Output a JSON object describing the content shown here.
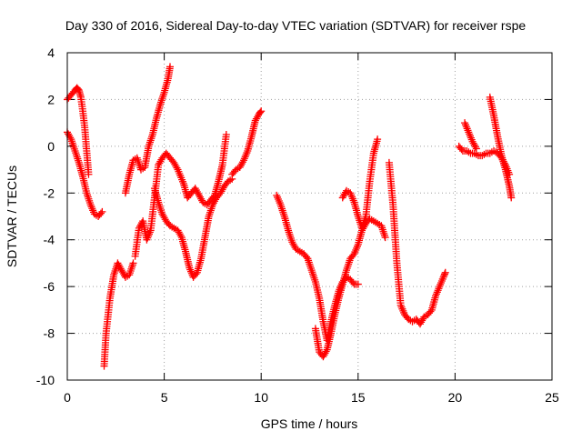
{
  "chart_data": {
    "type": "scatter",
    "title": "Day 330 of 2016, Sidereal Day-to-day VTEC variation (SDTVAR) for receiver rspe",
    "xlabel": "GPS time / hours",
    "ylabel": "SDTVAR / TECUs",
    "xlim": [
      0,
      25
    ],
    "ylim": [
      -10,
      4
    ],
    "x_ticks": [
      0,
      5,
      10,
      15,
      20,
      25
    ],
    "y_ticks": [
      -10,
      -8,
      -6,
      -4,
      -2,
      0,
      2,
      4
    ],
    "grid": true,
    "legend": "none",
    "marker": "+",
    "color": "#ff0000",
    "series": [
      {
        "x": [
          0.0,
          0.2,
          0.4,
          0.5,
          0.6,
          0.7,
          0.8,
          0.9,
          1.0,
          1.1
        ],
        "y": [
          2.0,
          2.2,
          2.4,
          2.5,
          2.4,
          2.1,
          1.5,
          0.8,
          -0.2,
          -1.2
        ]
      },
      {
        "x": [
          0.0,
          0.2,
          0.4,
          0.6,
          0.8,
          1.0,
          1.2,
          1.4,
          1.6,
          1.8
        ],
        "y": [
          0.6,
          0.3,
          -0.2,
          -0.7,
          -1.3,
          -2.0,
          -2.5,
          -2.9,
          -3.0,
          -2.8
        ]
      },
      {
        "x": [
          1.9,
          2.0,
          2.2,
          2.4,
          2.6,
          2.8,
          3.0,
          3.2,
          3.4
        ],
        "y": [
          -9.4,
          -8.0,
          -6.5,
          -5.5,
          -5.0,
          -5.3,
          -5.6,
          -5.5,
          -5.0
        ]
      },
      {
        "x": [
          3.0,
          3.2,
          3.4,
          3.6,
          3.8,
          4.0,
          4.2,
          4.4,
          4.6,
          4.8,
          5.0,
          5.2,
          5.3
        ],
        "y": [
          -2.0,
          -1.2,
          -0.6,
          -0.5,
          -1.0,
          -0.9,
          0.0,
          0.5,
          1.2,
          1.8,
          2.3,
          2.9,
          3.4
        ]
      },
      {
        "x": [
          3.5,
          3.7,
          3.9,
          4.1,
          4.3,
          4.5,
          4.7,
          4.9,
          5.1,
          5.3,
          5.5,
          5.7,
          6.0,
          6.2,
          6.4,
          6.6,
          6.8,
          7.0,
          7.2,
          7.4,
          7.6,
          7.8,
          8.0,
          8.2
        ],
        "y": [
          -4.7,
          -3.5,
          -3.2,
          -4.0,
          -3.6,
          -2.2,
          -0.8,
          -0.5,
          -0.3,
          -0.5,
          -0.7,
          -1.0,
          -1.6,
          -2.2,
          -2.0,
          -1.8,
          -2.1,
          -2.4,
          -2.5,
          -2.3,
          -2.1,
          -1.5,
          -0.8,
          0.5
        ]
      },
      {
        "x": [
          4.5,
          4.7,
          4.9,
          5.1,
          5.3,
          5.5,
          5.7,
          5.9,
          6.1,
          6.3,
          6.5,
          6.7,
          6.9,
          7.1,
          7.3,
          7.5,
          7.7,
          7.9,
          8.1,
          8.3,
          8.5
        ],
        "y": [
          -1.8,
          -2.4,
          -2.9,
          -3.2,
          -3.4,
          -3.5,
          -3.6,
          -3.9,
          -4.5,
          -5.2,
          -5.6,
          -5.4,
          -4.8,
          -3.9,
          -3.0,
          -2.5,
          -2.2,
          -2.0,
          -1.7,
          -1.5,
          -1.4
        ]
      },
      {
        "x": [
          8.5,
          8.7,
          8.9,
          9.1,
          9.3,
          9.5,
          9.7,
          9.9,
          10.0
        ],
        "y": [
          -1.2,
          -1.0,
          -0.9,
          -0.6,
          -0.2,
          0.4,
          1.1,
          1.4,
          1.5
        ]
      },
      {
        "x": [
          10.8,
          11.0,
          11.2,
          11.4,
          11.6,
          11.8,
          12.0,
          12.2,
          12.4,
          12.6,
          12.8,
          13.0,
          13.2,
          13.4,
          13.6,
          13.8,
          14.0,
          14.2,
          14.4,
          14.6,
          14.8,
          15.0
        ],
        "y": [
          -2.1,
          -2.5,
          -3.0,
          -3.6,
          -4.1,
          -4.4,
          -4.5,
          -4.6,
          -4.8,
          -5.3,
          -5.8,
          -6.5,
          -7.5,
          -8.3,
          -7.5,
          -6.8,
          -6.2,
          -5.8,
          -5.6,
          -5.7,
          -5.9,
          -5.9
        ]
      },
      {
        "x": [
          12.8,
          13.0,
          13.2,
          13.4,
          13.6,
          13.8,
          14.0,
          14.2,
          14.4,
          14.6,
          14.8,
          15.0,
          15.2,
          15.4,
          15.6,
          15.8,
          16.0,
          16.2,
          16.4
        ],
        "y": [
          -7.8,
          -8.8,
          -9.0,
          -8.7,
          -8.0,
          -7.2,
          -6.5,
          -5.9,
          -5.3,
          -4.8,
          -4.6,
          -4.2,
          -3.6,
          -3.3,
          -3.1,
          -3.2,
          -3.3,
          -3.4,
          -3.9
        ]
      },
      {
        "x": [
          14.2,
          14.4,
          14.6,
          14.8,
          15.0,
          15.2,
          15.4,
          15.6,
          15.8,
          16.0
        ],
        "y": [
          -2.2,
          -1.9,
          -2.0,
          -2.4,
          -3.0,
          -3.5,
          -3.0,
          -1.5,
          -0.3,
          0.3
        ]
      },
      {
        "x": [
          16.6,
          16.8,
          17.0,
          17.2,
          17.4,
          17.6,
          17.8,
          18.0,
          18.2,
          18.4,
          18.6,
          18.8,
          19.0,
          19.2,
          19.4,
          19.5
        ],
        "y": [
          -0.7,
          -2.5,
          -5.0,
          -6.8,
          -7.2,
          -7.4,
          -7.5,
          -7.4,
          -7.6,
          -7.3,
          -7.2,
          -7.0,
          -6.4,
          -6.0,
          -5.6,
          -5.4
        ]
      },
      {
        "x": [
          20.2,
          20.4,
          20.6,
          20.8,
          21.0,
          21.2,
          21.4,
          21.6,
          21.8,
          22.0,
          22.2,
          22.4,
          22.6,
          22.8
        ],
        "y": [
          0.0,
          -0.2,
          -0.2,
          -0.3,
          -0.3,
          -0.4,
          -0.4,
          -0.3,
          -0.3,
          -0.2,
          -0.3,
          -0.5,
          -0.8,
          -1.2
        ]
      },
      {
        "x": [
          20.5,
          20.7,
          20.9,
          21.1
        ],
        "y": [
          1.0,
          0.6,
          0.2,
          -0.1
        ]
      },
      {
        "x": [
          21.8,
          22.0,
          22.2,
          22.4,
          22.6,
          22.8,
          22.9
        ],
        "y": [
          2.1,
          1.3,
          0.4,
          -0.4,
          -1.0,
          -1.7,
          -2.2
        ]
      }
    ]
  }
}
